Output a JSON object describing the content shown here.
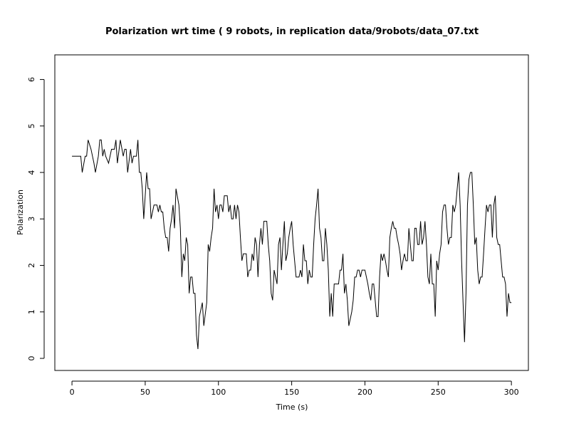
{
  "chart_data": {
    "type": "line",
    "title": "Polarization wrt time ( 9 robots, in replication  data/9robots/data_07.txt",
    "x_label": "Time (s)",
    "y_label": "Polarization",
    "color": "#000000",
    "xlim": [
      -11.7,
      311.6
    ],
    "ylim": [
      -0.26,
      6.53
    ],
    "xticks": [
      0,
      50,
      100,
      150,
      200,
      250,
      300
    ],
    "yticks": [
      0,
      1,
      2,
      3,
      4,
      5,
      6
    ],
    "x": [
      0,
      5,
      6,
      7,
      9,
      10,
      11,
      13,
      15,
      16,
      18,
      19,
      20,
      21,
      22,
      23,
      25,
      26,
      27,
      29,
      30,
      31,
      33,
      35,
      36,
      37,
      38,
      40,
      41,
      42,
      44,
      45,
      46,
      47,
      48,
      49,
      51,
      52,
      53,
      54,
      56,
      58,
      59,
      60,
      61,
      62,
      63,
      64,
      65,
      66,
      67,
      68,
      69,
      70,
      71,
      73,
      74,
      75,
      76,
      77,
      78,
      79,
      80,
      81,
      82,
      83,
      84,
      85,
      86,
      87,
      89,
      90,
      92,
      93,
      94,
      95,
      96,
      97,
      98,
      99,
      100,
      101,
      102,
      103,
      104,
      106,
      107,
      108,
      109,
      110,
      111,
      112,
      113,
      114,
      115,
      116,
      117,
      119,
      120,
      121,
      122,
      123,
      124,
      125,
      126,
      127,
      128,
      129,
      130,
      131,
      133,
      134,
      135,
      136,
      137,
      138,
      140,
      141,
      142,
      143,
      144,
      145,
      146,
      147,
      148,
      149,
      150,
      151,
      152,
      153,
      155,
      156,
      157,
      158,
      159,
      160,
      161,
      162,
      163,
      164,
      165,
      166,
      167,
      168,
      169,
      170,
      171,
      172,
      173,
      174,
      175,
      176,
      177,
      178,
      179,
      181,
      182,
      183,
      184,
      185,
      186,
      187,
      188,
      189,
      191,
      192,
      193,
      194,
      195,
      196,
      197,
      198,
      200,
      201,
      202,
      203,
      204,
      205,
      206,
      207,
      208,
      209,
      210,
      211,
      212,
      213,
      214,
      215,
      216,
      217,
      218,
      219,
      220,
      221,
      222,
      223,
      224,
      225,
      226,
      227,
      228,
      229,
      230,
      231,
      232,
      233,
      234,
      235,
      236,
      237,
      238,
      239,
      240,
      241,
      242,
      243,
      244,
      245,
      246,
      247,
      248,
      249,
      250,
      251,
      252,
      253,
      254,
      255,
      256,
      257,
      258,
      259,
      260,
      261,
      262,
      263,
      264,
      265,
      266,
      267,
      268,
      269,
      270,
      271,
      272,
      273,
      274,
      275,
      276,
      277,
      278,
      279,
      280,
      281,
      282,
      283,
      284,
      285,
      286,
      287,
      288,
      289,
      290,
      291,
      292,
      293,
      294,
      295,
      296,
      297,
      298,
      299,
      300
    ],
    "values": [
      4.35,
      4.35,
      4.35,
      4.0,
      4.35,
      4.35,
      4.7,
      4.5,
      4.2,
      4.0,
      4.35,
      4.7,
      4.7,
      4.35,
      4.5,
      4.35,
      4.2,
      4.35,
      4.5,
      4.5,
      4.7,
      4.2,
      4.7,
      4.35,
      4.5,
      4.5,
      4.0,
      4.5,
      4.2,
      4.35,
      4.35,
      4.7,
      4.0,
      4.0,
      3.65,
      3.0,
      4.0,
      3.65,
      3.65,
      3.0,
      3.3,
      3.3,
      3.15,
      3.3,
      3.15,
      3.15,
      2.8,
      2.6,
      2.6,
      2.3,
      2.8,
      3.0,
      3.3,
      2.8,
      3.65,
      3.3,
      2.8,
      1.75,
      2.25,
      2.1,
      2.6,
      2.45,
      1.4,
      1.75,
      1.75,
      1.4,
      1.4,
      0.5,
      0.2,
      0.9,
      1.2,
      0.7,
      1.2,
      2.45,
      2.3,
      2.6,
      2.8,
      3.65,
      3.15,
      3.3,
      3.0,
      3.3,
      3.3,
      3.15,
      3.5,
      3.5,
      3.15,
      3.3,
      3.0,
      3.0,
      3.3,
      3.0,
      3.3,
      3.15,
      2.6,
      2.1,
      2.25,
      2.25,
      1.75,
      1.9,
      1.9,
      2.25,
      2.1,
      2.6,
      2.45,
      1.75,
      2.45,
      2.8,
      2.45,
      2.95,
      2.95,
      2.45,
      2.1,
      1.4,
      1.25,
      1.9,
      1.6,
      2.45,
      2.6,
      1.9,
      2.45,
      2.95,
      2.1,
      2.25,
      2.6,
      2.8,
      2.95,
      2.45,
      2.1,
      1.75,
      1.75,
      1.9,
      1.75,
      2.45,
      2.1,
      2.1,
      1.6,
      1.9,
      1.75,
      1.75,
      2.45,
      3.0,
      3.3,
      3.65,
      2.8,
      2.6,
      2.1,
      2.1,
      2.8,
      2.45,
      1.9,
      0.9,
      1.4,
      0.9,
      1.6,
      1.6,
      1.6,
      1.9,
      1.9,
      2.25,
      1.4,
      1.6,
      1.25,
      0.7,
      1.0,
      1.25,
      1.75,
      1.75,
      1.9,
      1.9,
      1.75,
      1.9,
      1.9,
      1.75,
      1.6,
      1.4,
      1.25,
      1.6,
      1.6,
      1.25,
      0.9,
      0.9,
      1.75,
      2.25,
      2.1,
      2.25,
      2.1,
      1.9,
      1.75,
      2.6,
      2.8,
      2.95,
      2.8,
      2.8,
      2.6,
      2.45,
      2.25,
      1.9,
      2.1,
      2.25,
      2.1,
      2.1,
      2.8,
      2.45,
      2.1,
      2.1,
      2.8,
      2.8,
      2.45,
      2.45,
      2.95,
      2.45,
      2.6,
      2.95,
      2.45,
      1.75,
      1.6,
      2.25,
      1.6,
      1.6,
      0.9,
      2.1,
      1.9,
      2.25,
      2.45,
      3.15,
      3.3,
      3.3,
      2.8,
      2.45,
      2.6,
      2.6,
      3.3,
      3.15,
      3.3,
      3.65,
      4.0,
      3.3,
      2.1,
      1.2,
      0.35,
      1.4,
      3.3,
      3.85,
      4.0,
      4.0,
      3.3,
      2.45,
      2.6,
      1.9,
      1.6,
      1.75,
      1.75,
      2.25,
      2.8,
      3.3,
      3.15,
      3.3,
      3.3,
      2.6,
      3.3,
      3.5,
      2.6,
      2.45,
      2.45,
      2.1,
      1.75,
      1.75,
      1.6,
      0.9,
      1.4,
      1.2,
      1.2
    ]
  }
}
